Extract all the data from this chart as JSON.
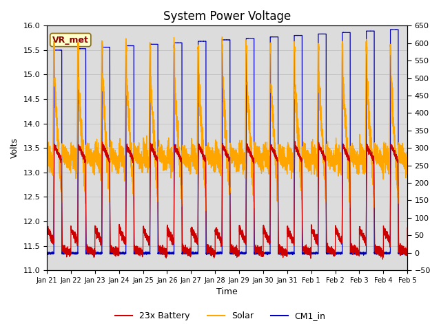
{
  "title": "System Power Voltage",
  "xlabel": "Time",
  "ylabel_left": "Volts",
  "ylim_left": [
    11.0,
    16.0
  ],
  "ylim_right": [
    -50,
    650
  ],
  "xtick_labels": [
    "Jan 21",
    "Jan 22",
    "Jan 23",
    "Jan 24",
    "Jan 25",
    "Jan 26",
    "Jan 27",
    "Jan 28",
    "Jan 29",
    "Jan 30",
    "Jan 31",
    "Feb 1",
    "Feb 2",
    "Feb 3",
    "Feb 4",
    "Feb 5"
  ],
  "vr_met_label": "VR_met",
  "vr_met_color": "#8B0000",
  "vr_met_bg": "#FFFFCC",
  "vr_met_edge": "#8B6914",
  "legend_labels": [
    "23x Battery",
    "Solar",
    "CM1_in"
  ],
  "legend_colors": [
    "#CC0000",
    "#FFA500",
    "#0000BB"
  ],
  "background_color": "#DCDCDC",
  "grid_color": "#BBBBBB",
  "title_fontsize": 12,
  "axis_fontsize": 9,
  "tick_fontsize": 8,
  "legend_fontsize": 9
}
